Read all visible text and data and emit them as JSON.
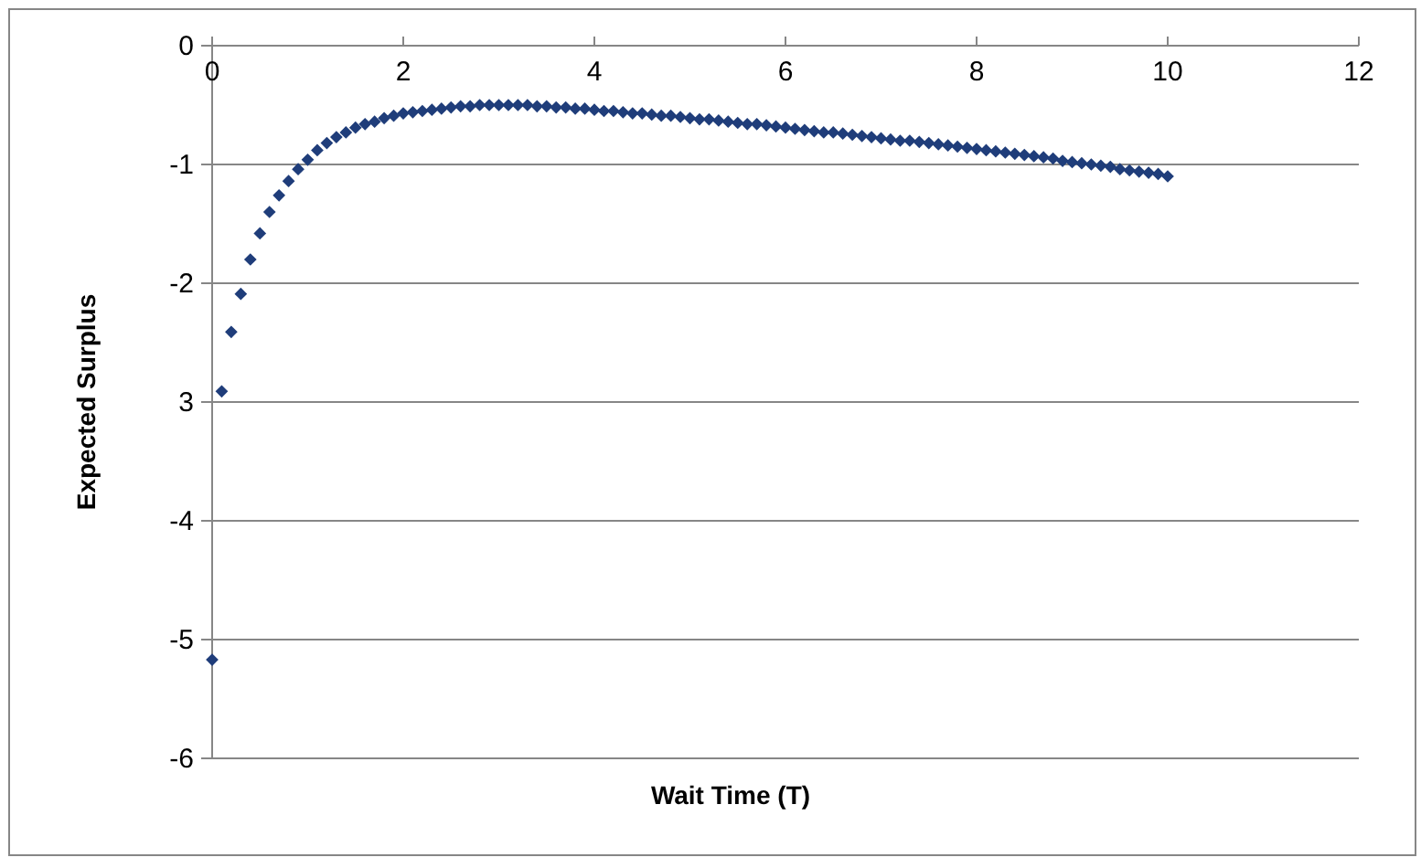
{
  "chart_data": {
    "type": "scatter",
    "xlabel": "Wait Time (T)",
    "ylabel": "Expected Surplus",
    "xlim": [
      0,
      12
    ],
    "xticks": [
      0,
      2,
      4,
      6,
      8,
      10,
      12
    ],
    "ylim": [
      -6,
      0
    ],
    "yticks": [
      -6,
      -5,
      -4,
      {
        "value": -3,
        "label": "3"
      },
      -2,
      -1,
      0
    ],
    "grid": "y",
    "marker": "diamond",
    "series": [
      {
        "color": "#1f3d7a",
        "x": [
          0,
          0.1,
          0.2,
          0.3,
          0.4,
          0.5,
          0.6,
          0.7,
          0.8,
          0.9,
          1,
          1.1,
          1.2,
          1.3,
          1.4,
          1.5,
          1.6,
          1.7,
          1.8,
          1.9,
          2,
          2.1,
          2.2,
          2.3,
          2.4,
          2.5,
          2.6,
          2.7,
          2.8,
          2.9,
          3,
          3.1,
          3.2,
          3.3,
          3.4,
          3.5,
          3.6,
          3.7,
          3.8,
          3.9,
          4,
          4.1,
          4.2,
          4.3,
          4.4,
          4.5,
          4.6,
          4.7,
          4.8,
          4.9,
          5,
          5.1,
          5.2,
          5.3,
          5.4,
          5.5,
          5.6,
          5.7,
          5.8,
          5.9,
          6,
          6.1,
          6.2,
          6.3,
          6.4,
          6.5,
          6.6,
          6.7,
          6.8,
          6.9,
          7,
          7.1,
          7.2,
          7.3,
          7.4,
          7.5,
          7.6,
          7.7,
          7.8,
          7.9,
          8,
          8.1,
          8.2,
          8.3,
          8.4,
          8.5,
          8.6,
          8.7,
          8.8,
          8.9,
          9,
          9.1,
          9.2,
          9.3,
          9.4,
          9.5,
          9.6,
          9.7,
          9.8,
          9.9,
          10
        ],
        "values": [
          -5.17,
          -2.91,
          -2.41,
          -2.09,
          -1.8,
          -1.58,
          -1.4,
          -1.26,
          -1.14,
          -1.04,
          -0.96,
          -0.88,
          -0.82,
          -0.77,
          -0.73,
          -0.69,
          -0.66,
          -0.64,
          -0.61,
          -0.59,
          -0.57,
          -0.56,
          -0.55,
          -0.54,
          -0.53,
          -0.52,
          -0.51,
          -0.51,
          -0.5,
          -0.5,
          -0.5,
          -0.5,
          -0.5,
          -0.5,
          -0.51,
          -0.51,
          -0.52,
          -0.52,
          -0.53,
          -0.53,
          -0.54,
          -0.55,
          -0.55,
          -0.56,
          -0.57,
          -0.57,
          -0.58,
          -0.59,
          -0.59,
          -0.6,
          -0.61,
          -0.62,
          -0.62,
          -0.63,
          -0.64,
          -0.65,
          -0.66,
          -0.66,
          -0.67,
          -0.68,
          -0.69,
          -0.7,
          -0.71,
          -0.72,
          -0.73,
          -0.73,
          -0.74,
          -0.75,
          -0.76,
          -0.77,
          -0.78,
          -0.79,
          -0.8,
          -0.8,
          -0.81,
          -0.82,
          -0.83,
          -0.84,
          -0.85,
          -0.86,
          -0.87,
          -0.88,
          -0.89,
          -0.9,
          -0.91,
          -0.92,
          -0.93,
          -0.94,
          -0.95,
          -0.97,
          -0.98,
          -0.99,
          -1,
          -1.01,
          -1.02,
          -1.04,
          -1.05,
          -1.06,
          -1.07,
          -1.08,
          -1.1
        ]
      }
    ]
  }
}
